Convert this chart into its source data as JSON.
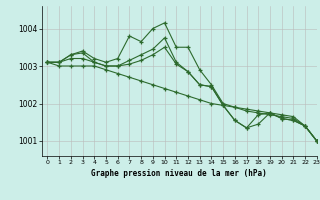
{
  "title": "Graphe pression niveau de la mer (hPa)",
  "background_color": "#cceee8",
  "grid_color": "#bbbbbb",
  "line_color": "#2d6a2d",
  "xlim": [
    -0.5,
    23
  ],
  "ylim": [
    1000.6,
    1004.6
  ],
  "yticks": [
    1001,
    1002,
    1003,
    1004
  ],
  "xticks": [
    0,
    1,
    2,
    3,
    4,
    5,
    6,
    7,
    8,
    9,
    10,
    11,
    12,
    13,
    14,
    15,
    16,
    17,
    18,
    19,
    20,
    21,
    22,
    23
  ],
  "series": [
    [
      1003.1,
      1003.1,
      1003.3,
      1003.4,
      1003.2,
      1003.1,
      1003.2,
      1003.8,
      1003.65,
      1004.0,
      1004.15,
      1003.5,
      1003.5,
      1002.9,
      1002.5,
      1002.0,
      1001.9,
      1001.8,
      1001.75,
      1001.7,
      1001.65,
      1001.6,
      1001.4,
      1001.0
    ],
    [
      1003.1,
      1003.1,
      1003.3,
      1003.35,
      1003.1,
      1003.0,
      1003.0,
      1003.15,
      1003.3,
      1003.45,
      1003.75,
      1003.1,
      1002.85,
      1002.5,
      1002.45,
      1001.95,
      1001.55,
      1001.35,
      1001.7,
      1001.75,
      1001.6,
      1001.55,
      1001.4,
      1001.0
    ],
    [
      1003.1,
      1003.1,
      1003.2,
      1003.2,
      1003.1,
      1003.0,
      1003.0,
      1003.05,
      1003.15,
      1003.3,
      1003.5,
      1003.05,
      1002.85,
      1002.5,
      1002.45,
      1001.95,
      1001.55,
      1001.35,
      1001.45,
      1001.75,
      1001.6,
      1001.55,
      1001.4,
      1001.0
    ],
    [
      1003.1,
      1003.0,
      1003.0,
      1003.0,
      1003.0,
      1002.9,
      1002.8,
      1002.7,
      1002.6,
      1002.5,
      1002.4,
      1002.3,
      1002.2,
      1002.1,
      1002.0,
      1001.95,
      1001.9,
      1001.85,
      1001.8,
      1001.75,
      1001.7,
      1001.65,
      1001.4,
      1001.0
    ]
  ]
}
